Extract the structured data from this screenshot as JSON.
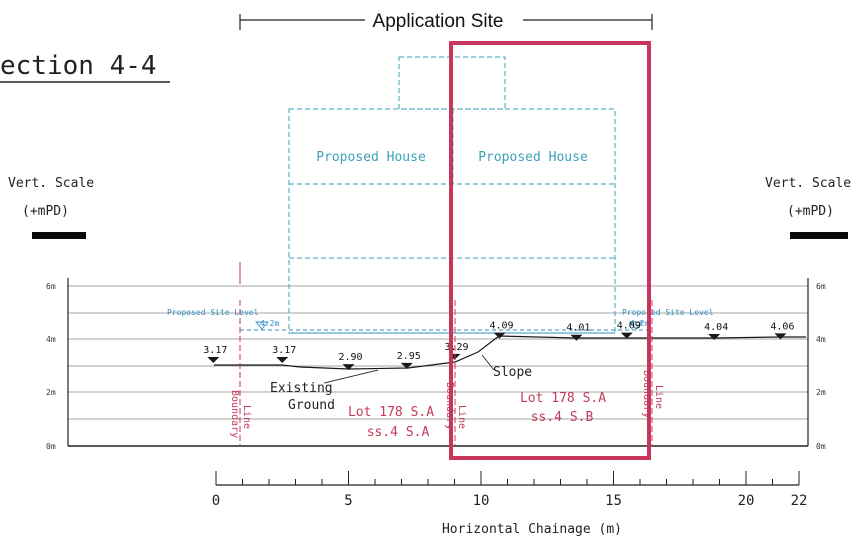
{
  "header": {
    "application_site": "Application Site",
    "section_title": "ection 4-4"
  },
  "scale": {
    "left_title": "Vert. Scale",
    "left_unit": "(+mPD)",
    "right_title": "Vert. Scale",
    "right_unit": "(+mPD)",
    "levels": [
      "0m",
      "2m",
      "4m",
      "6m"
    ]
  },
  "house": {
    "label_left": "Proposed House",
    "label_right": "Proposed House"
  },
  "site_level": {
    "left_label": "Proposed Site Level",
    "left_value": "4.2m",
    "right_label": "Proposed Site Level",
    "right_value": "4.2m"
  },
  "ground": {
    "existing_label_1": "Existing",
    "existing_label_2": "Ground",
    "slope_label": "Slope",
    "spot_levels": [
      {
        "chainage": -0.1,
        "level": "3.17"
      },
      {
        "chainage": 2.5,
        "level": "3.17"
      },
      {
        "chainage": 5.0,
        "level": "2.90"
      },
      {
        "chainage": 7.2,
        "level": "2.95"
      },
      {
        "chainage": 9.0,
        "level": "3.29"
      },
      {
        "chainage": 10.7,
        "level": "4.09"
      },
      {
        "chainage": 13.6,
        "level": "4.01"
      },
      {
        "chainage": 15.5,
        "level": "4.09"
      },
      {
        "chainage": 18.8,
        "level": "4.04"
      },
      {
        "chainage": 21.3,
        "level": "4.06"
      }
    ]
  },
  "boundary": {
    "left_1": "Boundary",
    "left_2": "Line",
    "mid_1": "Boundary",
    "mid_2": "Line",
    "right_1": "Boundary",
    "right_2": "Line"
  },
  "lots": {
    "left_1": "Lot 178 S.A",
    "left_2": "ss.4 S.A",
    "right_1": "Lot 178 S.A",
    "right_2": "ss.4 S.B"
  },
  "axis": {
    "label": "Horizontal Chainage (m)",
    "ticks": [
      "0",
      "5",
      "10",
      "15",
      "20",
      "22"
    ],
    "tick_values": [
      0,
      5,
      10,
      15,
      20,
      22
    ],
    "range": [
      0,
      22
    ]
  },
  "colors": {
    "line": "#1a1a1a",
    "house_dashed": "#3ba0b8",
    "site_level_text": "#2f8fc0",
    "boundary": "#c43a58",
    "highlight_frame": "#c8365e",
    "lot_text": "#c43a58"
  }
}
